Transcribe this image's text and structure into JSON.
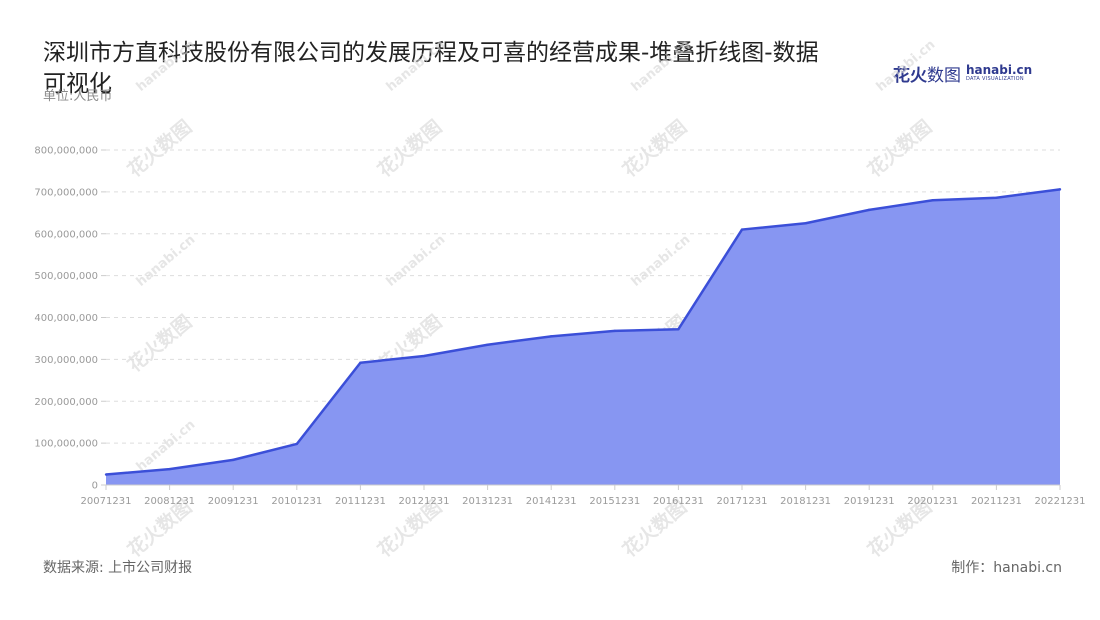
{
  "header": {
    "title": "深圳市方直科技股份有限公司的发展历程及可喜的经营成果-堆叠折线图-数据可视化",
    "unit": "单位:人民币"
  },
  "logo": {
    "cn_bold": "花火",
    "cn_light": "数图",
    "en_name": "hanabi.cn",
    "en_sub": "DATA VISUALIZATION"
  },
  "footer": {
    "source": "数据来源: 上市公司财报",
    "credit": "制作：hanabi.cn"
  },
  "colors": {
    "area_fill": "#8796f2",
    "line": "#3b4fd8",
    "grid": "#dddddd",
    "axis": "#9a9a9a"
  },
  "watermark": {
    "cn": "花火数图",
    "en": "hanabi.cn"
  },
  "chart_data": {
    "type": "area",
    "stacked": true,
    "categories": [
      "20071231",
      "20081231",
      "20091231",
      "20101231",
      "20111231",
      "20121231",
      "20131231",
      "20141231",
      "20151231",
      "20161231",
      "20171231",
      "20181231",
      "20191231",
      "20201231",
      "20211231",
      "20221231"
    ],
    "series": [
      {
        "name": "",
        "values": [
          25000000,
          38000000,
          60000000,
          98000000,
          292000000,
          308000000,
          335000000,
          355000000,
          368000000,
          372000000,
          610000000,
          625000000,
          657000000,
          680000000,
          686000000,
          706000000
        ]
      }
    ],
    "ylim": [
      0,
      800000000
    ],
    "yticks": [
      0,
      100000000,
      200000000,
      300000000,
      400000000,
      500000000,
      600000000,
      700000000,
      800000000
    ],
    "ytick_labels": [
      "0",
      "100,000,000",
      "200,000,000",
      "300,000,000",
      "400,000,000",
      "500,000,000",
      "600,000,000",
      "700,000,000",
      "800,000,000"
    ],
    "grid": true,
    "xlabel": "",
    "ylabel": ""
  }
}
